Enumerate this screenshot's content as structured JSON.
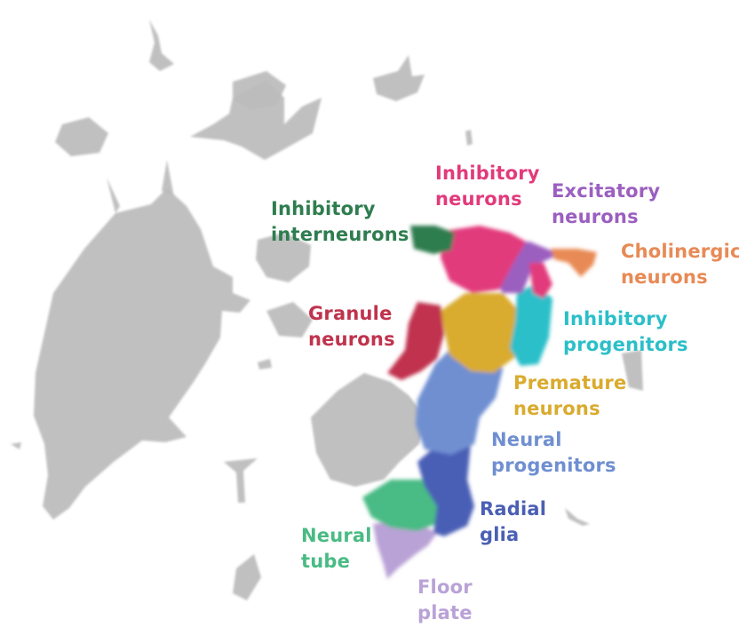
{
  "colors": {
    "background": "#ffffff",
    "other_cells": "#bdbdbd",
    "inhibitory_interneurons": "#2e7d4f",
    "inhibitory_neurons": "#e23a7b",
    "excitatory_neurons": "#9b5fc0",
    "cholinergic_neurons": "#e88a55",
    "granule_neurons": "#c0334d",
    "inhibitory_progenitors": "#2bbfc9",
    "premature_neurons": "#d9ab2e",
    "neural_progenitors": "#6f8fd1",
    "radial_glia": "#4a5fb5",
    "neural_tube": "#49bb84",
    "floor_plate": "#b9a2d6"
  },
  "labels": {
    "inhibitory_interneurons": [
      "Inhibitory",
      "interneurons"
    ],
    "inhibitory_neurons": [
      "Inhibitory",
      "neurons"
    ],
    "excitatory_neurons": [
      "Excitatory",
      "neurons"
    ],
    "cholinergic_neurons": [
      "Cholinergic",
      "neurons"
    ],
    "granule_neurons": [
      "Granule",
      "neurons"
    ],
    "inhibitory_progenitors": [
      "Inhibitory",
      "progenitors"
    ],
    "premature_neurons": [
      "Premature",
      "neurons"
    ],
    "neural_progenitors": [
      "Neural",
      "progenitors"
    ],
    "radial_glia": [
      "Radial",
      "glia"
    ],
    "neural_tube": [
      "Neural",
      "tube"
    ],
    "floor_plate": [
      "Floor",
      "plate"
    ]
  }
}
